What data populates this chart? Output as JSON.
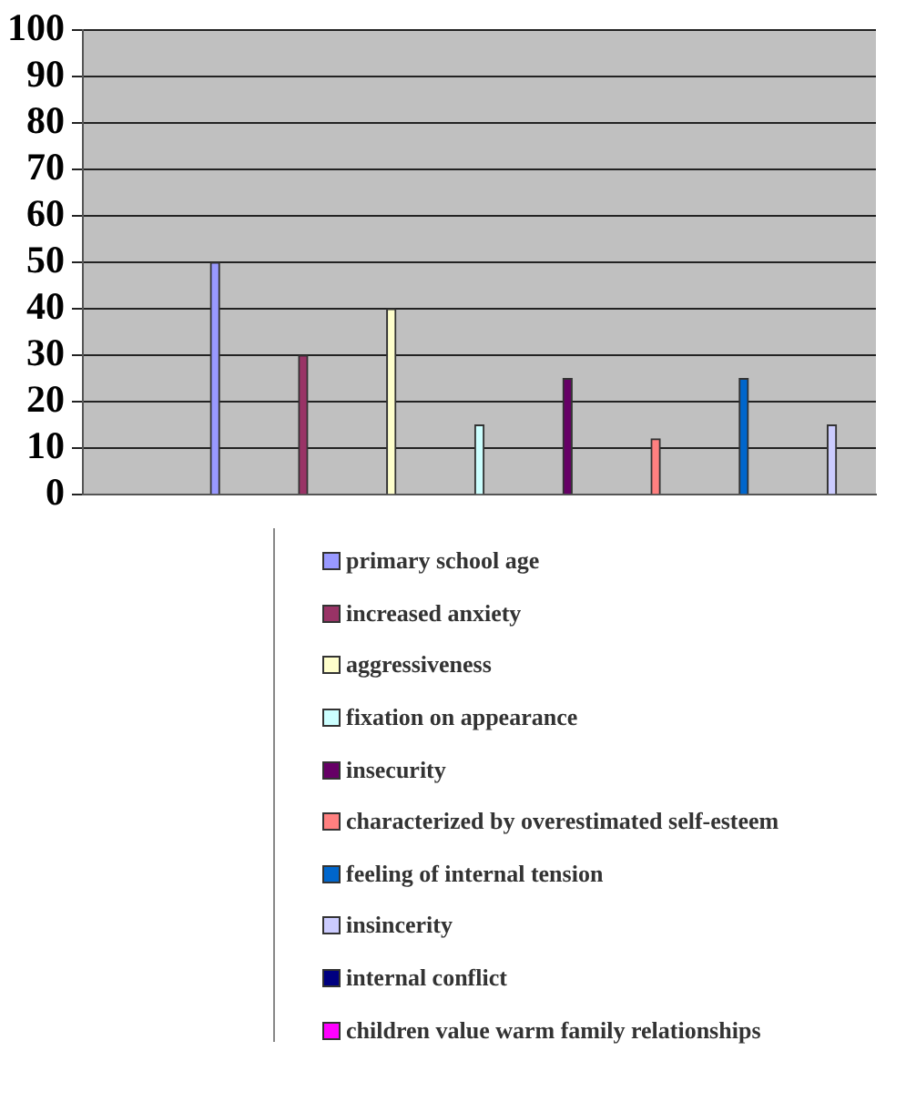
{
  "chart_data": {
    "type": "bar",
    "categories": [
      null,
      null,
      null,
      null,
      null,
      null,
      null,
      null,
      null
    ],
    "series": [
      {
        "name": "primary school age",
        "color": "#9999ff",
        "values": [
          null,
          50,
          null,
          null,
          null,
          null,
          null,
          null,
          null
        ]
      },
      {
        "name": "increased anxiety",
        "color": "#993366",
        "values": [
          null,
          null,
          30,
          null,
          null,
          null,
          null,
          null,
          null
        ]
      },
      {
        "name": "aggressiveness",
        "color": "#ffffcc",
        "values": [
          null,
          null,
          null,
          40,
          null,
          null,
          null,
          null,
          null
        ]
      },
      {
        "name": "fixation on appearance",
        "color": "#ccffff",
        "values": [
          null,
          null,
          null,
          null,
          15,
          null,
          null,
          null,
          null
        ]
      },
      {
        "name": "insecurity",
        "color": "#660066",
        "values": [
          null,
          null,
          null,
          null,
          null,
          25,
          null,
          null,
          null
        ]
      },
      {
        "name": "characterized by overestimated self-esteem",
        "color": "#ff8080",
        "values": [
          null,
          null,
          null,
          null,
          null,
          null,
          12,
          null,
          null
        ]
      },
      {
        "name": "feeling of internal tension",
        "color": "#0066cc",
        "values": [
          null,
          null,
          null,
          null,
          null,
          null,
          null,
          25,
          null
        ]
      },
      {
        "name": "insincerity",
        "color": "#ccccff",
        "values": [
          null,
          null,
          null,
          null,
          null,
          null,
          null,
          null,
          15
        ]
      },
      {
        "name": "internal conflict",
        "color": "#000080",
        "values": [
          null,
          null,
          null,
          null,
          null,
          null,
          null,
          null,
          null
        ]
      },
      {
        "name": "children value warm family relationships",
        "color": "#ff00ff",
        "values": [
          null,
          null,
          null,
          null,
          null,
          null,
          null,
          null,
          null
        ]
      }
    ],
    "ylim": [
      0,
      100
    ],
    "yticks": [
      0,
      10,
      20,
      30,
      40,
      50,
      60,
      70,
      80,
      90,
      100
    ],
    "grid": "y",
    "legend": "bottom"
  }
}
